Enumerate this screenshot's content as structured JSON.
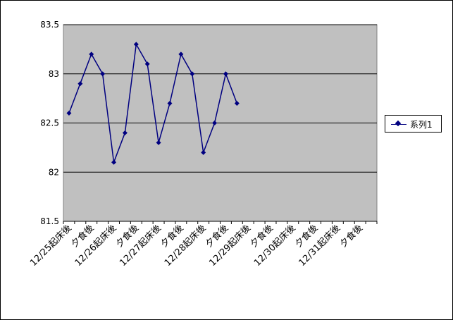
{
  "chart_data": {
    "type": "line",
    "title": "",
    "xlabel": "",
    "ylabel": "",
    "ylim": [
      81.5,
      83.5
    ],
    "yticks": [
      "81.5",
      "82",
      "82.5",
      "83",
      "83.5"
    ],
    "grid": true,
    "legend_position": "right",
    "plot_background": "#c0c0c0",
    "line_color": "#000080",
    "categories": [
      "12/25起床後",
      "",
      "夕食後",
      "",
      "12/26起床後",
      "",
      "夕食後",
      "",
      "12/27起床後",
      "",
      "夕食後",
      "",
      "12/28起床後",
      "",
      "夕食後",
      "",
      "12/29起床後",
      "",
      "夕食後",
      "",
      "12/30起床後",
      "",
      "夕食後",
      "",
      "12/31起床後",
      "",
      "夕食後",
      ""
    ],
    "series": [
      {
        "name": "系列1",
        "values": [
          82.6,
          82.9,
          83.2,
          83.0,
          82.1,
          82.4,
          83.3,
          83.1,
          82.3,
          82.7,
          83.2,
          83.0,
          82.2,
          82.5,
          83.0,
          82.7,
          null,
          null,
          null,
          null,
          null,
          null,
          null,
          null,
          null,
          null,
          null,
          null
        ]
      }
    ]
  }
}
